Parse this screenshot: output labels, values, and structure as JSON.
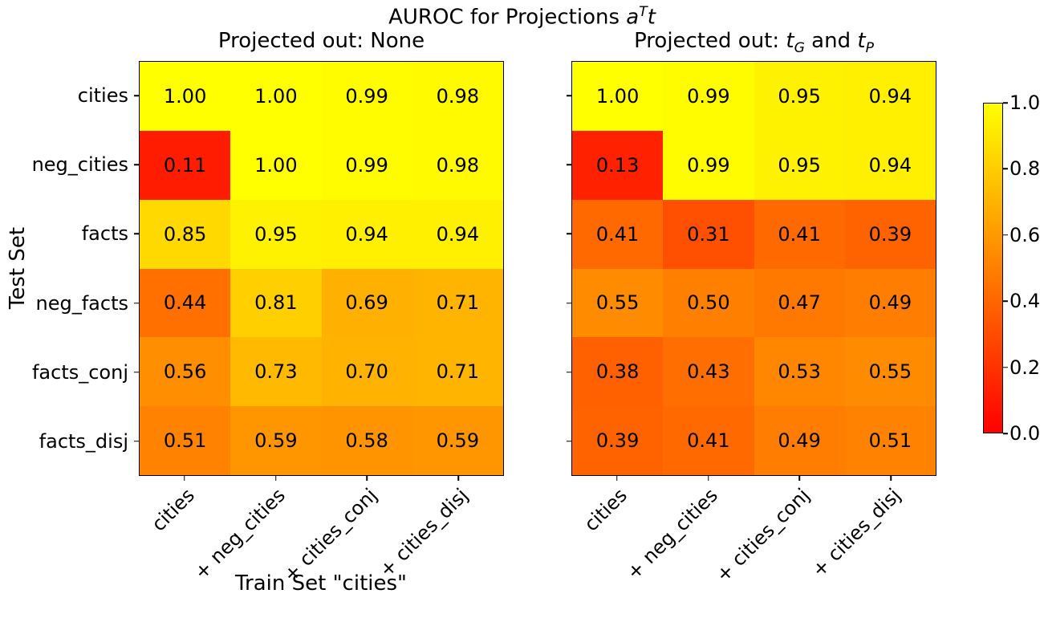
{
  "figure": {
    "suptitle": {
      "prefix": "AUROC for Projections ",
      "var": "a",
      "sup": "T",
      "var2": "t"
    },
    "xlabel": "Train Set \"cities\"",
    "ylabel": "Test Set",
    "colors": {
      "cmap_low": "#ff0000",
      "cmap_high": "#ffff00",
      "text": "#000000",
      "background": "#ffffff",
      "spine": "#000000"
    },
    "colorbar": {
      "cmap": "autumn",
      "vmin": 0.0,
      "vmax": 1.0,
      "ticks": [
        {
          "label": "0.0",
          "value": 0.0
        },
        {
          "label": "0.2",
          "value": 0.2
        },
        {
          "label": "0.4",
          "value": 0.4
        },
        {
          "label": "0.6",
          "value": 0.6
        },
        {
          "label": "0.8",
          "value": 0.8
        },
        {
          "label": "1.0",
          "value": 1.0
        }
      ]
    }
  },
  "chart_data": [
    {
      "type": "heatmap",
      "title_parts": {
        "prefix": "Projected out: None",
        "var1": "",
        "sub1": "",
        "mid": "",
        "var2": "",
        "sub2": ""
      },
      "x": [
        "cities",
        "+ neg_cities",
        "+ cities_conj",
        "+ cities_disj"
      ],
      "y": [
        "cities",
        "neg_cities",
        "facts",
        "neg_facts",
        "facts_conj",
        "facts_disj"
      ],
      "values": [
        [
          1.0,
          1.0,
          0.99,
          0.98
        ],
        [
          0.11,
          1.0,
          0.99,
          0.98
        ],
        [
          0.85,
          0.95,
          0.94,
          0.94
        ],
        [
          0.44,
          0.81,
          0.69,
          0.71
        ],
        [
          0.56,
          0.73,
          0.7,
          0.71
        ],
        [
          0.51,
          0.59,
          0.58,
          0.59
        ]
      ],
      "vmin": 0.0,
      "vmax": 1.0,
      "cmap": "autumn",
      "annotations": true,
      "show_y_labels": true
    },
    {
      "type": "heatmap",
      "title_parts": {
        "prefix": "Projected out: ",
        "var1": "t",
        "sub1": "G",
        "mid": " and ",
        "var2": "t",
        "sub2": "P"
      },
      "x": [
        "cities",
        "+ neg_cities",
        "+ cities_conj",
        "+ cities_disj"
      ],
      "y": [
        "cities",
        "neg_cities",
        "facts",
        "neg_facts",
        "facts_conj",
        "facts_disj"
      ],
      "values": [
        [
          1.0,
          0.99,
          0.95,
          0.94
        ],
        [
          0.13,
          0.99,
          0.95,
          0.94
        ],
        [
          0.41,
          0.31,
          0.41,
          0.39
        ],
        [
          0.55,
          0.5,
          0.47,
          0.49
        ],
        [
          0.38,
          0.43,
          0.53,
          0.55
        ],
        [
          0.39,
          0.41,
          0.49,
          0.51
        ]
      ],
      "vmin": 0.0,
      "vmax": 1.0,
      "cmap": "autumn",
      "annotations": true,
      "show_y_labels": false
    }
  ]
}
